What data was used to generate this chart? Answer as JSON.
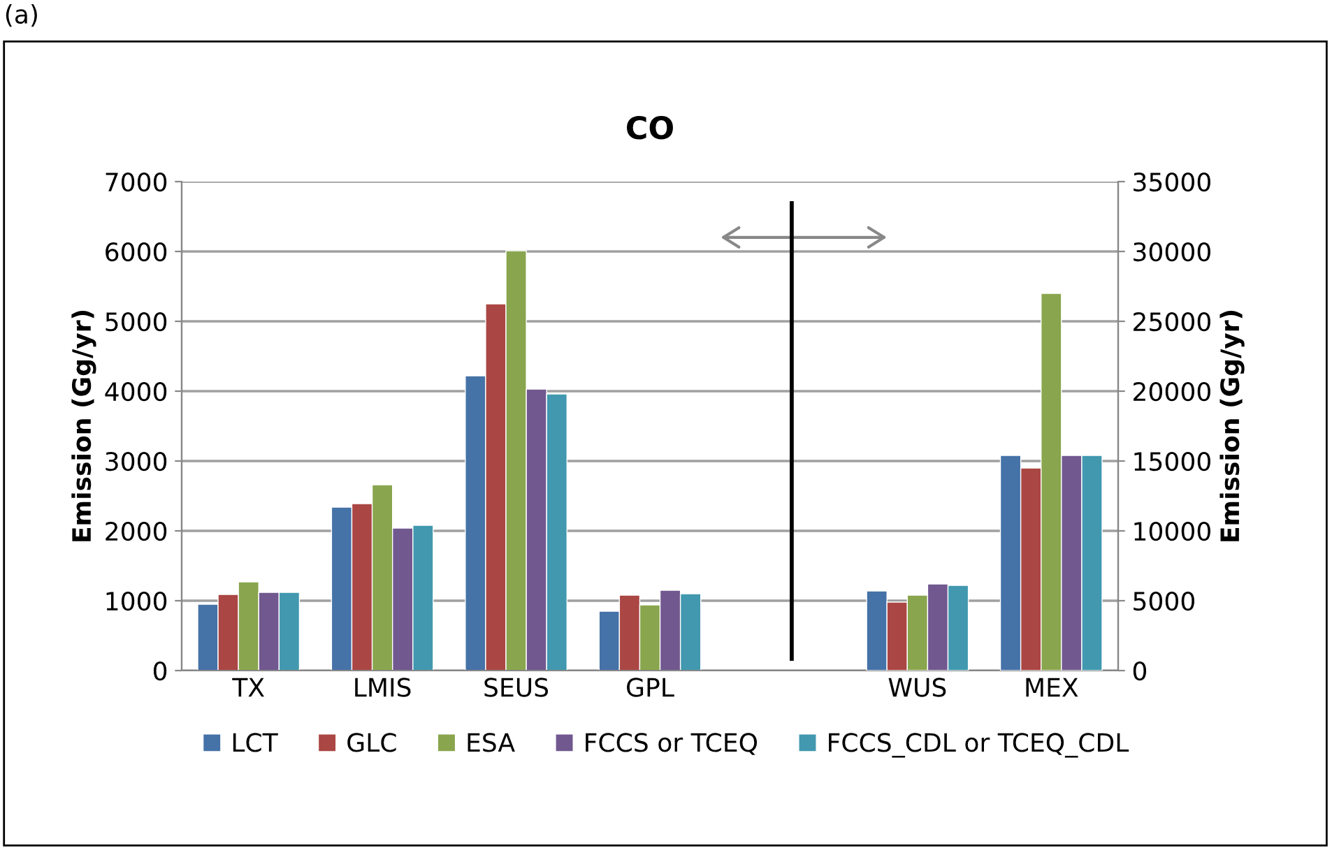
{
  "chart_data": {
    "type": "bar",
    "title": "CO",
    "ylabel": "Emission (Gg/yr)",
    "y2label": "Emission (Gg/yr)",
    "annotations": [
      "(a)"
    ],
    "categories": [
      "TX",
      "LMIS",
      "SEUS",
      "GPL",
      null,
      "WUS",
      "MEX"
    ],
    "series": [
      {
        "name": "LCT",
        "color": "#4572a7",
        "values": [
          950,
          2340,
          4220,
          850,
          null,
          null,
          null
        ]
      },
      {
        "name": "GLC",
        "color": "#aa4643",
        "values": [
          1090,
          2390,
          5250,
          1080,
          null,
          null,
          null
        ]
      },
      {
        "name": "ESA",
        "color": "#89a54e",
        "values": [
          1270,
          2660,
          6010,
          940,
          null,
          null,
          null
        ]
      },
      {
        "name": "FCCS or TCEQ",
        "color": "#71588f",
        "values": [
          1120,
          2040,
          4030,
          1150,
          null,
          null,
          null
        ]
      },
      {
        "name": "FCCS_CDL or TCEQ_CDL",
        "color": "#4198af",
        "values": [
          1120,
          2080,
          3960,
          1100,
          null,
          null,
          null
        ]
      },
      {
        "color": "#4572a7",
        "axis": "y2",
        "values": [
          null,
          null,
          null,
          null,
          null,
          5700,
          15400
        ]
      },
      {
        "color": "#aa4643",
        "axis": "y2",
        "values": [
          null,
          null,
          null,
          null,
          null,
          4900,
          14500
        ]
      },
      {
        "color": "#89a54e",
        "axis": "y2",
        "values": [
          null,
          null,
          null,
          null,
          null,
          5400,
          27000
        ]
      },
      {
        "color": "#71588f",
        "axis": "y2",
        "values": [
          null,
          null,
          null,
          null,
          null,
          6200,
          15400
        ]
      },
      {
        "color": "#4198af",
        "axis": "y2",
        "values": [
          null,
          null,
          null,
          null,
          null,
          6100,
          15400
        ]
      }
    ],
    "ylim": [
      0,
      7000
    ],
    "yticks": [
      0,
      1000,
      2000,
      3000,
      4000,
      5000,
      6000,
      7000
    ],
    "y2lim": [
      0,
      35000
    ],
    "y2ticks": [
      0,
      5000,
      10000,
      15000,
      20000,
      25000,
      30000,
      35000
    ],
    "grid": "y",
    "legend": "bottom"
  }
}
